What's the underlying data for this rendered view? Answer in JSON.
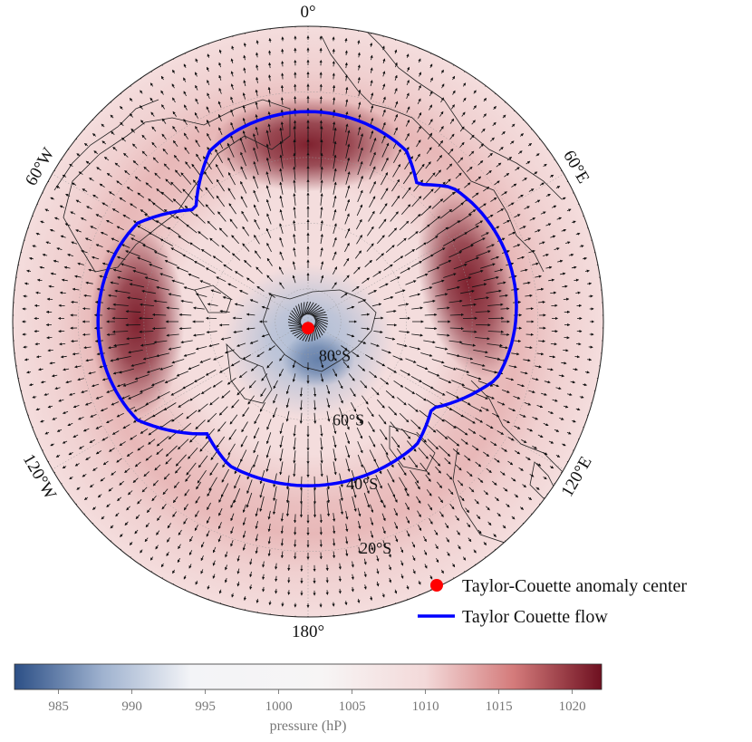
{
  "chart_data": {
    "type": "heatmap",
    "projection": "south-polar-stereographic",
    "title": "",
    "field": "pressure (hP)",
    "colormap": {
      "name": "diverging blue-white-red",
      "range": [
        982,
        1022
      ],
      "stops": [
        {
          "value": 982,
          "color": "#2c4f86"
        },
        {
          "value": 988,
          "color": "#9fb2cf"
        },
        {
          "value": 994,
          "color": "#f3f4f7"
        },
        {
          "value": 1003,
          "color": "#f7f5f5"
        },
        {
          "value": 1010,
          "color": "#f3d9d9"
        },
        {
          "value": 1016,
          "color": "#d47b7b"
        },
        {
          "value": 1022,
          "color": "#6e1020"
        }
      ]
    },
    "pressure_field": {
      "background_hpa": 1009,
      "center_low_hpa": 989,
      "highs": [
        {
          "lon": 0,
          "lat": -36,
          "hpa": 1021
        },
        {
          "lon": 77,
          "lat": -40,
          "hpa": 1021
        },
        {
          "lon": -90,
          "lat": -38,
          "hpa": 1021
        }
      ]
    },
    "longitude_labels": [
      {
        "lon": 0,
        "text": "0°"
      },
      {
        "lon": 60,
        "text": "60°E"
      },
      {
        "lon": 120,
        "text": "120°E"
      },
      {
        "lon": 180,
        "text": "180°"
      },
      {
        "lon": -120,
        "text": "120°W"
      },
      {
        "lon": -60,
        "text": "60°W"
      }
    ],
    "latitude_labels": [
      {
        "lat": -80,
        "text": "80°S"
      },
      {
        "lat": -60,
        "text": "60°S"
      },
      {
        "lat": -40,
        "text": "40°S"
      },
      {
        "lat": -20,
        "text": "20°S"
      }
    ],
    "wind_vectors": "outward radial divergence from pole",
    "anomaly_center": {
      "lon": 180,
      "lat": -88,
      "color": "#ff0000"
    },
    "taylor_couette_flow": {
      "color": "#0000ff",
      "description": "three-lobed closed contour surrounding the pole",
      "lobes": [
        {
          "lon": 0,
          "lat": -28
        },
        {
          "lon": 77,
          "lat": -24
        },
        {
          "lon": -90,
          "lat": -24
        }
      ]
    },
    "legend": {
      "placement": "bottom-right",
      "entries": [
        {
          "label": "Taylor-Couette anomaly center",
          "marker": "dot",
          "color": "#ff0000"
        },
        {
          "label": "Taylor Couette flow",
          "marker": "line",
          "color": "#0000ff"
        }
      ]
    },
    "colorbar": {
      "ticks": [
        985,
        990,
        995,
        1000,
        1005,
        1010,
        1015,
        1020
      ],
      "label": "pressure (hP)"
    }
  }
}
